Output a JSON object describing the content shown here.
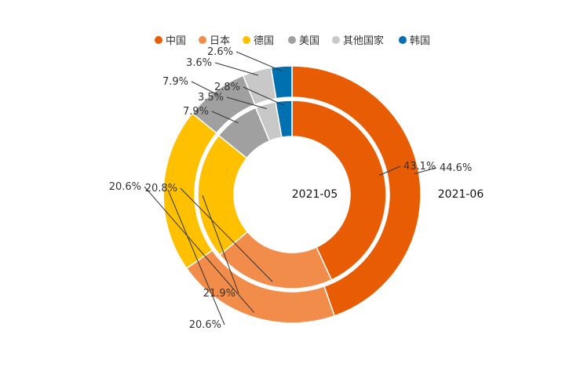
{
  "chart_data": {
    "type": "pie",
    "variant": "nested-donut",
    "categories": [
      "中国",
      "日本",
      "德国",
      "美国",
      "其他国家",
      "韩国"
    ],
    "colors": [
      "#E85D04",
      "#F28C4A",
      "#FFC000",
      "#A0A0A0",
      "#C8C8C8",
      "#0070B0"
    ],
    "legend_position": "top",
    "series": [
      {
        "name": "2021-05",
        "ring": "inner",
        "values": [
          43.1,
          20.8,
          21.9,
          7.9,
          3.5,
          2.8
        ],
        "labels": [
          "43.1%",
          "20.8%",
          "21.9%",
          "7.9%",
          "3.5%",
          "2.8%"
        ]
      },
      {
        "name": "2021-06",
        "ring": "outer",
        "values": [
          44.6,
          20.6,
          20.6,
          7.9,
          3.6,
          2.6
        ],
        "labels": [
          "44.6%",
          "20.6%",
          "20.6%",
          "7.9%",
          "3.6%",
          "2.6%"
        ]
      }
    ]
  }
}
